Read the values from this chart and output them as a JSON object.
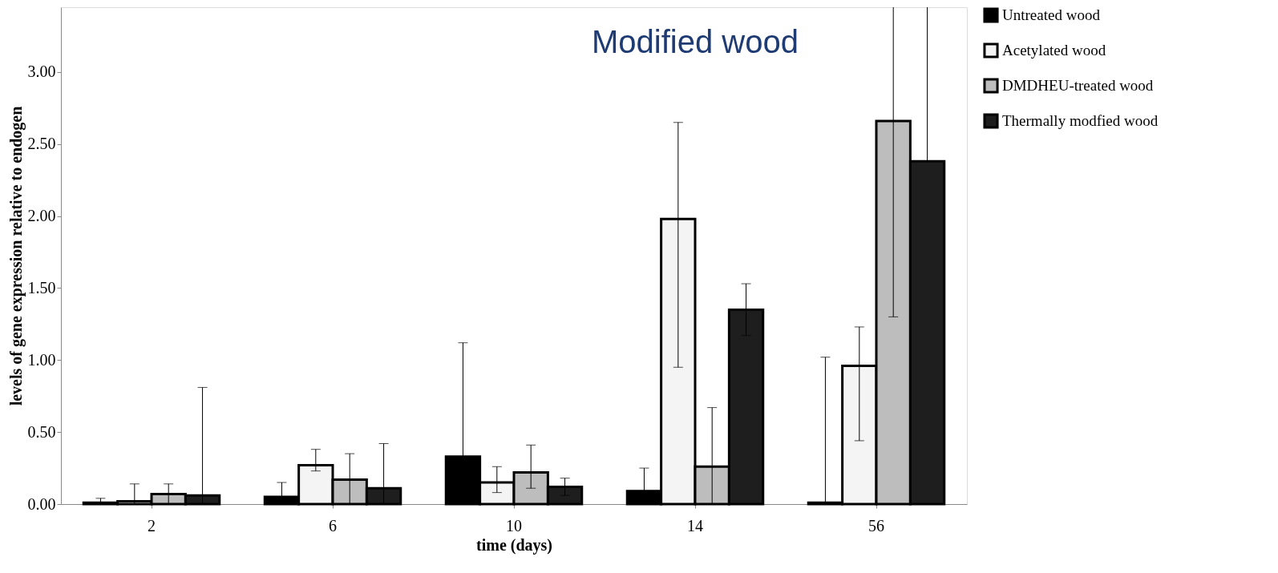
{
  "chart_data": {
    "type": "bar",
    "xlabel": "time (days)",
    "ylabel": "levels of gene expression relative to endogen",
    "categories": [
      "2",
      "6",
      "10",
      "14",
      "56"
    ],
    "series": [
      {
        "name": "Untreated wood",
        "color": "#000000",
        "values": [
          0.01,
          0.05,
          0.33,
          0.09,
          0.01
        ],
        "errors": [
          [
            0.01,
            0.04
          ],
          [
            0,
            0.15
          ],
          [
            0,
            1.12
          ],
          [
            0,
            0.25
          ],
          [
            0,
            1.02
          ]
        ]
      },
      {
        "name": "Acetylated wood",
        "color": "#f4f4f4",
        "values": [
          0.02,
          0.27,
          0.15,
          1.98,
          0.96
        ],
        "errors": [
          [
            0,
            0.14
          ],
          [
            0.23,
            0.38
          ],
          [
            0.08,
            0.26
          ],
          [
            0.95,
            2.65
          ],
          [
            0.44,
            1.23
          ]
        ]
      },
      {
        "name": "DMDHEU-treated wood",
        "color": "#bdbdbd",
        "values": [
          0.07,
          0.17,
          0.22,
          0.26,
          2.66
        ],
        "errors": [
          [
            0,
            0.14
          ],
          [
            0,
            0.35
          ],
          [
            0.11,
            0.41
          ],
          [
            0,
            0.67
          ],
          [
            1.3,
            3.45
          ]
        ]
      },
      {
        "name": "Thermally modfied wood",
        "color": "#1e1e1e",
        "values": [
          0.06,
          0.11,
          0.12,
          1.35,
          2.38
        ],
        "errors": [
          [
            0,
            0.81
          ],
          [
            0,
            0.42
          ],
          [
            0.06,
            0.18
          ],
          [
            1.17,
            1.53
          ],
          [
            2.38,
            3.45
          ]
        ]
      }
    ],
    "ylim": [
      0,
      3.45
    ],
    "yticks": [
      {
        "value": 0,
        "label": "0.00"
      },
      {
        "value": 0.5,
        "label": "0.50"
      },
      {
        "value": 1,
        "label": "1.00"
      },
      {
        "value": 1.5,
        "label": "1.50"
      },
      {
        "value": 2,
        "label": "2.00"
      },
      {
        "value": 2.5,
        "label": "2.50"
      },
      {
        "value": 3,
        "label": "3.00"
      }
    ],
    "legend": "right",
    "grid": false,
    "annotations": [
      "Modified wood"
    ]
  }
}
